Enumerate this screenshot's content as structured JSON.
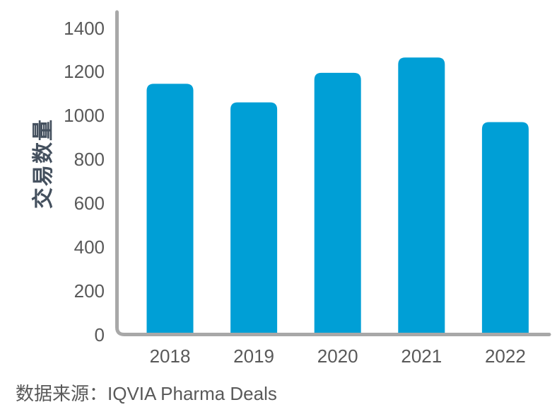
{
  "chart_data": {
    "type": "bar",
    "title": "",
    "categories": [
      "2018",
      "2019",
      "2020",
      "2021",
      "2022"
    ],
    "values": [
      1145,
      1060,
      1195,
      1265,
      970
    ],
    "xlabel": "",
    "ylabel": "交易数量",
    "ylim": [
      0,
      1400
    ],
    "yticks": [
      0,
      200,
      400,
      600,
      800,
      1000,
      1200,
      1400
    ],
    "grid": false,
    "legend": false,
    "bar_color": "#009FD6",
    "axis_color": "#A8A8A8",
    "tick_text_color": "#595959",
    "ylabel_color": "#44505E",
    "source_note": "数据来源：IQVIA Pharma Deals"
  }
}
